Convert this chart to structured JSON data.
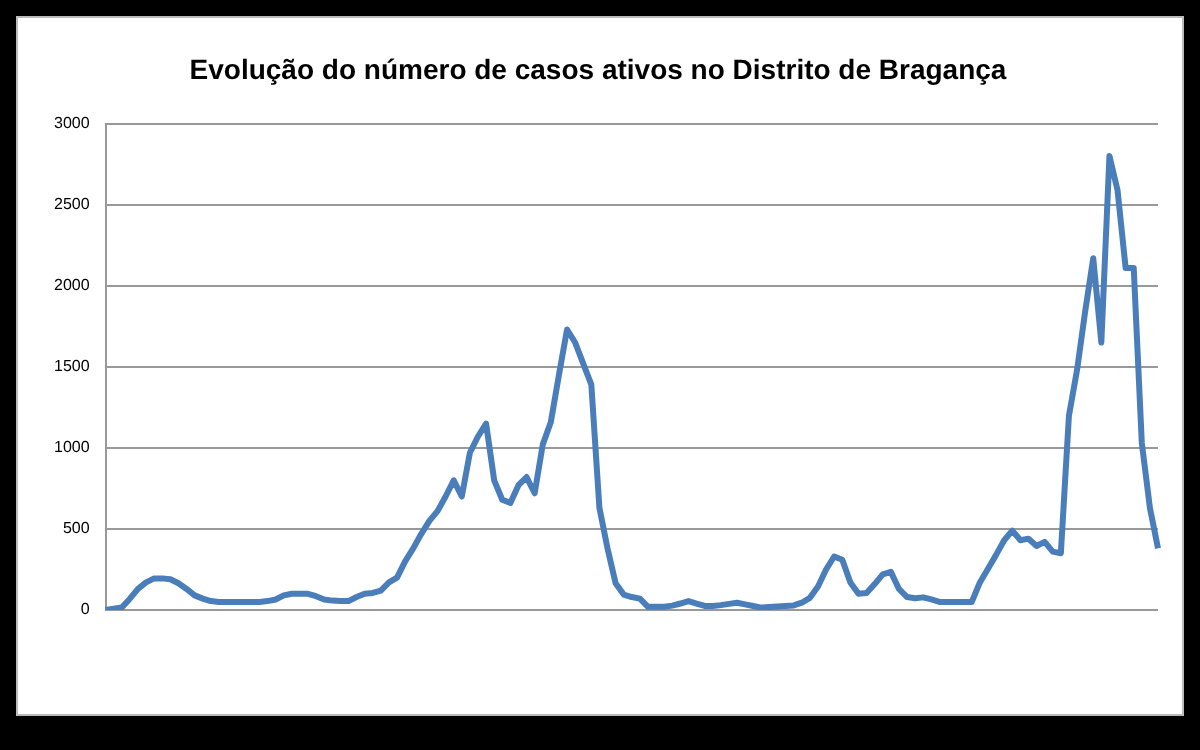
{
  "chart_data": {
    "type": "line",
    "title": "Evolução do número de casos ativos no Distrito de Bragança",
    "categories": [
      null,
      null,
      null,
      null,
      null,
      null,
      null,
      null,
      null,
      null,
      null,
      null,
      null,
      null,
      null,
      null,
      null,
      null,
      null,
      null,
      null,
      null,
      null,
      null,
      null,
      null,
      null,
      null,
      null,
      null,
      null,
      null,
      null,
      null,
      null,
      null,
      null,
      null,
      null,
      null,
      null,
      null,
      null,
      null,
      null,
      null,
      null,
      null,
      null,
      null,
      null,
      null,
      null,
      null,
      null,
      null,
      null,
      null,
      null,
      null,
      null,
      null,
      null,
      null,
      null,
      null,
      null,
      null,
      null,
      null,
      null,
      null,
      null,
      null,
      null,
      null,
      null,
      null,
      null,
      null,
      null,
      null,
      null,
      null,
      null,
      null,
      null,
      null,
      null,
      null,
      null,
      null,
      null,
      null,
      null,
      null,
      null,
      null,
      null,
      null,
      null,
      null,
      null,
      null,
      null,
      null,
      null,
      null,
      null,
      null,
      null,
      null,
      null,
      null,
      null,
      null,
      null,
      null,
      null,
      null,
      null,
      null,
      null,
      null,
      null,
      null,
      null,
      null,
      null,
      null,
      null
    ],
    "series": [
      {
        "color": "#4a7ebb",
        "values": [
          0,
          8,
          15,
          70,
          130,
          170,
          195,
          195,
          190,
          165,
          130,
          90,
          70,
          55,
          50,
          50,
          50,
          50,
          50,
          50,
          55,
          65,
          90,
          100,
          100,
          100,
          85,
          65,
          58,
          55,
          55,
          80,
          100,
          105,
          120,
          170,
          200,
          300,
          380,
          470,
          550,
          610,
          700,
          800,
          700,
          970,
          1070,
          1150,
          800,
          680,
          660,
          770,
          820,
          720,
          1020,
          1160,
          1450,
          1730,
          1650,
          1520,
          1390,
          630,
          380,
          165,
          95,
          80,
          70,
          20,
          20,
          20,
          27,
          40,
          55,
          40,
          25,
          25,
          30,
          38,
          45,
          35,
          25,
          15,
          18,
          21,
          24,
          28,
          45,
          75,
          145,
          250,
          330,
          310,
          170,
          100,
          105,
          160,
          220,
          235,
          130,
          80,
          72,
          78,
          65,
          50,
          50,
          50,
          50,
          50,
          170,
          255,
          340,
          430,
          490,
          430,
          440,
          395,
          420,
          360,
          350,
          1200,
          1480,
          1840,
          2170,
          1650,
          2800,
          2590,
          2110,
          2110,
          1030,
          630,
          380
        ]
      }
    ],
    "ylim": [
      0,
      3000
    ],
    "yticks": [
      0,
      500,
      1000,
      1500,
      2000,
      2500,
      3000
    ],
    "grid": "y",
    "legend": false,
    "marker": "none",
    "line_style": "solid",
    "tick_labels": "y"
  }
}
